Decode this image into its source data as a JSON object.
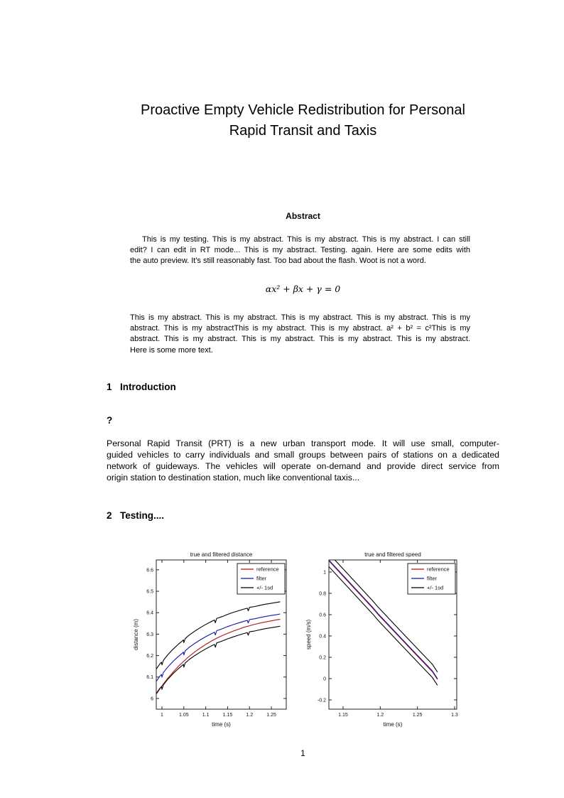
{
  "title": {
    "line1": "Proactive Empty Vehicle Redistribution for Personal",
    "line2": "Rapid Transit and Taxis"
  },
  "abstract": {
    "heading": "Abstract",
    "para1_lines": [
      "This is my testing. This is my abstract. This is my abstract. This is my abstract. I can still",
      "edit? I can edit in RT mode... This is my abstract. Testing. again. Here are some edits with",
      "the auto preview. It's still reasonably fast. Too bad about the flash. Woot is not a word."
    ],
    "equation": "αx² + βx + γ = 0",
    "para2_lines": [
      "This is my abstract. This is my abstract. This is my abstract. This is my abstract. This is my",
      "abstract. This is my abstractThis is my abstract. This is my abstract. a² + b² = c²This is my",
      "abstract. This is my abstract. This is my abstract. This is my abstract. This is my abstract.",
      "Here is some more text."
    ]
  },
  "sections": [
    {
      "number": "1",
      "heading": "Introduction"
    },
    {
      "number": "2",
      "heading": "Testing...."
    }
  ],
  "question_heading": "?",
  "intro_lines": [
    "Personal Rapid Transit (PRT) is a new urban transport mode.  It will use small, computer-",
    "guided vehicles to carry individuals and small groups between pairs of stations on a dedicated",
    "network of guideways.  The vehicles will operate on-demand and provide direct service from",
    "origin station to destination station, much like conventional taxis..."
  ],
  "page": {
    "number": "1"
  },
  "chart_data": [
    {
      "type": "line",
      "name": "distance-plot",
      "title": "true and filtered distance",
      "xlabel": "time (s)",
      "ylabel": "distance (m)",
      "xlim": [
        0.987,
        1.284
      ],
      "ylim": [
        5.95,
        6.646
      ],
      "xticks": [
        1,
        1.05,
        1.1,
        1.15,
        1.2,
        1.25
      ],
      "xtick_labels": [
        "1",
        "1.05",
        "1.1",
        "1.15",
        "1.2",
        "1.25"
      ],
      "yticks": [
        6,
        6.1,
        6.2,
        6.3,
        6.4,
        6.5,
        6.6
      ],
      "ytick_labels": [
        "6",
        "6.1",
        "6.2",
        "6.3",
        "6.4",
        "6.5",
        "6.6"
      ],
      "grid": false,
      "legend": [
        "reference",
        "filter",
        "+/- 1sd"
      ],
      "legend_position": "top-right",
      "series": [
        {
          "name": "reference",
          "color": "#bb1111",
          "points": [
            [
              0.987,
              6.02
            ],
            [
              1.0,
              6.059
            ],
            [
              1.0125,
              6.092
            ],
            [
              1.025,
              6.122
            ],
            [
              1.0375,
              6.15
            ],
            [
              1.05,
              6.174
            ],
            [
              1.0625,
              6.197
            ],
            [
              1.075,
              6.217
            ],
            [
              1.0875,
              6.235
            ],
            [
              1.1,
              6.252
            ],
            [
              1.1125,
              6.267
            ],
            [
              1.125,
              6.281
            ],
            [
              1.1375,
              6.293
            ],
            [
              1.15,
              6.304
            ],
            [
              1.1625,
              6.314
            ],
            [
              1.175,
              6.323
            ],
            [
              1.1875,
              6.332
            ],
            [
              1.2,
              6.339
            ],
            [
              1.2125,
              6.346
            ],
            [
              1.225,
              6.352
            ],
            [
              1.2375,
              6.357
            ],
            [
              1.25,
              6.362
            ],
            [
              1.2625,
              6.367
            ],
            [
              1.27,
              6.369
            ]
          ]
        },
        {
          "name": "filter",
          "color": "#1515a8",
          "points": [
            [
              0.987,
              6.08
            ],
            [
              0.996,
              6.106
            ],
            [
              0.999,
              6.112
            ],
            [
              1.0,
              6.099
            ],
            [
              1.003,
              6.12
            ],
            [
              1.0125,
              6.145
            ],
            [
              1.025,
              6.172
            ],
            [
              1.0375,
              6.196
            ],
            [
              1.047,
              6.212
            ],
            [
              1.049,
              6.216
            ],
            [
              1.05,
              6.203
            ],
            [
              1.053,
              6.222
            ],
            [
              1.0625,
              6.239
            ],
            [
              1.075,
              6.257
            ],
            [
              1.0875,
              6.273
            ],
            [
              1.1,
              6.288
            ],
            [
              1.112,
              6.301
            ],
            [
              1.12,
              6.309
            ],
            [
              1.122,
              6.296
            ],
            [
              1.125,
              6.316
            ],
            [
              1.1375,
              6.325
            ],
            [
              1.15,
              6.335
            ],
            [
              1.1625,
              6.344
            ],
            [
              1.175,
              6.352
            ],
            [
              1.1875,
              6.36
            ],
            [
              1.195,
              6.364
            ],
            [
              1.197,
              6.352
            ],
            [
              1.2,
              6.368
            ],
            [
              1.2125,
              6.372
            ],
            [
              1.225,
              6.378
            ],
            [
              1.2375,
              6.383
            ],
            [
              1.25,
              6.387
            ],
            [
              1.2625,
              6.391
            ],
            [
              1.27,
              6.394
            ]
          ]
        },
        {
          "name": "+/- 1sd",
          "color": "#000000",
          "band_of": "filter",
          "offset": 0.057
        }
      ]
    },
    {
      "type": "line",
      "name": "speed-plot",
      "title": "true and filtered speed",
      "xlabel": "time (s)",
      "ylabel": "speed (m/s)",
      "xlim": [
        1.1309,
        1.3029
      ],
      "ylim": [
        -0.287,
        1.113
      ],
      "xticks": [
        1.15,
        1.2,
        1.25,
        1.3
      ],
      "xtick_labels": [
        "1.15",
        "1.2",
        "1.25",
        "1.3"
      ],
      "yticks": [
        -0.2,
        0,
        0.2,
        0.4,
        0.6,
        0.8,
        1
      ],
      "ytick_labels": [
        "-0.2",
        "0",
        "0.2",
        "0.4",
        "0.6",
        "0.8",
        "1"
      ],
      "grid": false,
      "legend": [
        "reference",
        "filter",
        "+/- 1sd"
      ],
      "legend_position": "top-right",
      "series": [
        {
          "name": "reference",
          "color": "#bb1111",
          "points": [
            [
              1.131,
              1.104
            ],
            [
              1.16,
              0.885
            ],
            [
              1.19,
              0.66
            ],
            [
              1.197,
              0.602
            ],
            [
              1.226,
              0.388
            ],
            [
              1.25,
              0.212
            ],
            [
              1.27,
              0.066
            ],
            [
              1.277,
              -0.008
            ]
          ]
        },
        {
          "name": "filter",
          "color": "#1515a8",
          "points": [
            [
              1.131,
              1.111
            ],
            [
              1.16,
              0.892
            ],
            [
              1.19,
              0.667
            ],
            [
              1.197,
              0.609
            ],
            [
              1.226,
              0.395
            ],
            [
              1.25,
              0.219
            ],
            [
              1.27,
              0.073
            ],
            [
              1.277,
              -0.001
            ]
          ]
        },
        {
          "name": "+/- 1sd",
          "color": "#000000",
          "band_of": "filter",
          "offset": 0.062
        }
      ]
    }
  ]
}
